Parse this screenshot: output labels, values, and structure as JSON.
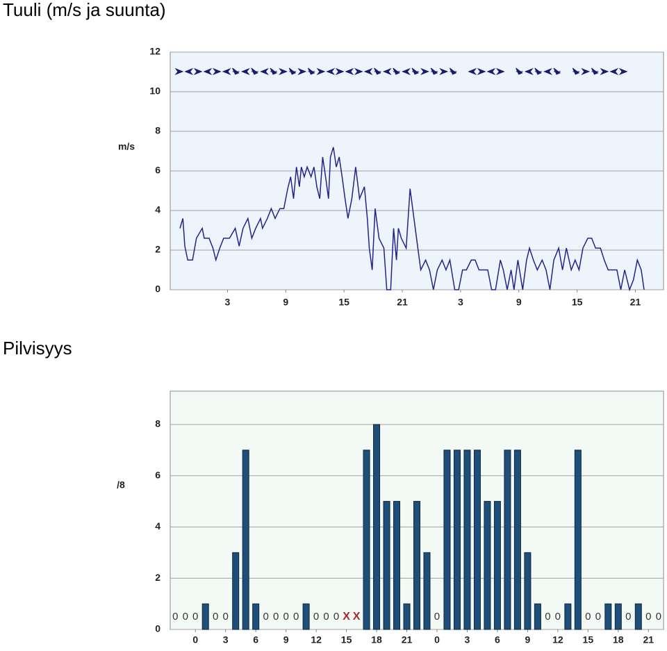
{
  "chart_data": [
    {
      "type": "line",
      "title": "Tuuli (m/s ja suunta)",
      "ylabel": "m/s",
      "color": "#23238a",
      "background": "#eef4fb",
      "grid": true,
      "xlim": [
        -2.9,
        47.9
      ],
      "xticks": [
        3,
        9,
        15,
        21,
        {
          "value": 27,
          "label": "3"
        },
        {
          "value": 33,
          "label": "9"
        },
        {
          "value": 39,
          "label": "15"
        },
        {
          "value": 45,
          "label": "21"
        }
      ],
      "ylim": [
        0,
        12
      ],
      "yticks": [
        0,
        2,
        4,
        6,
        8,
        10,
        12
      ],
      "x": [
        -1.9,
        -1.6,
        -1.4,
        -1.1,
        -0.6,
        -0.2,
        0.4,
        0.6,
        1.1,
        1.5,
        1.8,
        2.2,
        2.6,
        3.2,
        3.8,
        4.2,
        4.6,
        5.1,
        5.5,
        5.9,
        6.4,
        6.6,
        7.1,
        7.5,
        7.9,
        8.4,
        8.8,
        9.2,
        9.5,
        9.8,
        10.1,
        10.4,
        10.6,
        10.9,
        11.2,
        11.6,
        11.9,
        12.2,
        12.5,
        12.8,
        13.1,
        13.4,
        13.6,
        13.9,
        14.2,
        14.5,
        14.8,
        15.1,
        15.4,
        15.8,
        16.2,
        16.6,
        17.1,
        17.4,
        17.6,
        17.9,
        18.2,
        18.6,
        19.1,
        19.4,
        19.8,
        20.1,
        20.4,
        20.6,
        20.9,
        21.4,
        21.8,
        22.2,
        22.6,
        22.9,
        23.4,
        23.8,
        24.2,
        24.6,
        25.1,
        25.5,
        25.9,
        26.4,
        26.8,
        27.2,
        27.6,
        28.1,
        28.5,
        28.9,
        29.4,
        29.8,
        30.2,
        30.6,
        31.1,
        31.4,
        31.8,
        32.2,
        32.5,
        32.9,
        33.4,
        33.8,
        34.1,
        34.5,
        34.9,
        35.4,
        35.8,
        36.2,
        36.6,
        37.1,
        37.5,
        37.9,
        38.4,
        38.8,
        39.2,
        39.6,
        40.1,
        40.5,
        40.9,
        41.4,
        41.8,
        42.2,
        42.6,
        43.1,
        43.5,
        43.9,
        44.4,
        44.8,
        45.2,
        45.6,
        45.9
      ],
      "values": [
        3.1,
        3.6,
        2.2,
        1.5,
        1.5,
        2.6,
        3.1,
        2.6,
        2.6,
        2.1,
        1.5,
        2.1,
        2.6,
        2.6,
        3.1,
        2.2,
        3.1,
        3.6,
        2.6,
        3.1,
        3.6,
        3.1,
        3.6,
        4.1,
        3.6,
        4.1,
        4.1,
        5.1,
        5.7,
        4.6,
        6.2,
        5.2,
        6.2,
        5.7,
        6.2,
        5.7,
        6.2,
        5.2,
        4.6,
        6.7,
        5.7,
        4.6,
        6.7,
        7.2,
        6.2,
        6.7,
        5.7,
        4.6,
        3.6,
        4.6,
        6.2,
        4.6,
        5.2,
        3.6,
        2.1,
        1.0,
        4.1,
        2.6,
        2.1,
        0,
        0,
        3.1,
        1.5,
        3.1,
        2.6,
        2.1,
        5.1,
        3.6,
        2.1,
        1.0,
        1.5,
        1.0,
        0,
        1.0,
        1.5,
        1.0,
        1.5,
        0,
        0,
        1.0,
        1.0,
        1.5,
        1.5,
        1.0,
        1.0,
        1.0,
        0,
        0,
        1.5,
        1.0,
        0,
        1.0,
        0,
        1.5,
        0,
        1.5,
        2.1,
        1.5,
        1.0,
        1.5,
        1.0,
        0,
        1.5,
        2.1,
        1.0,
        2.1,
        1.0,
        1.5,
        1.0,
        2.1,
        2.6,
        2.6,
        2.1,
        2.1,
        1.5,
        1.0,
        1.0,
        1.0,
        0,
        1.0,
        0,
        0.5,
        1.5,
        1.0,
        0
      ]
    },
    {
      "type": "bar",
      "title": "Pilvisyys",
      "ylabel": "/8",
      "color": "#1f4e79",
      "background": "#f3faf5",
      "grid": true,
      "ylim": [
        0,
        9.3
      ],
      "yticks": [
        0,
        2,
        4,
        6,
        8
      ],
      "categories": [
        null,
        null,
        "0",
        null,
        null,
        "3",
        null,
        null,
        "6",
        null,
        null,
        "9",
        null,
        null,
        "12",
        null,
        null,
        "15",
        null,
        null,
        "18",
        null,
        null,
        "21",
        null,
        null,
        "0",
        null,
        null,
        "3",
        null,
        null,
        "6",
        null,
        null,
        "9",
        null,
        null,
        "12",
        null,
        null,
        "15",
        null,
        null,
        "18",
        null,
        null,
        "21",
        null
      ],
      "values": [
        0,
        0,
        0,
        1,
        0,
        0,
        3,
        7,
        1,
        0,
        0,
        0,
        0,
        1,
        0,
        0,
        0,
        null,
        null,
        7,
        8,
        5,
        5,
        1,
        5,
        3,
        0,
        7,
        7,
        7,
        7,
        5,
        5,
        7,
        7,
        3,
        1,
        0,
        0,
        1,
        7,
        0,
        0,
        1,
        1,
        0,
        1,
        0,
        0
      ],
      "value_labels": [
        null,
        null,
        null,
        null,
        null,
        null,
        null,
        null,
        null,
        null,
        null,
        null,
        null,
        null,
        null,
        null,
        null,
        "X",
        "X",
        null,
        null,
        null,
        null,
        null,
        null,
        null,
        null,
        null,
        null,
        null,
        null,
        null,
        null,
        null,
        null,
        null,
        null,
        null,
        null,
        null,
        null,
        null,
        null,
        null,
        null,
        null,
        null,
        null,
        null
      ]
    }
  ]
}
